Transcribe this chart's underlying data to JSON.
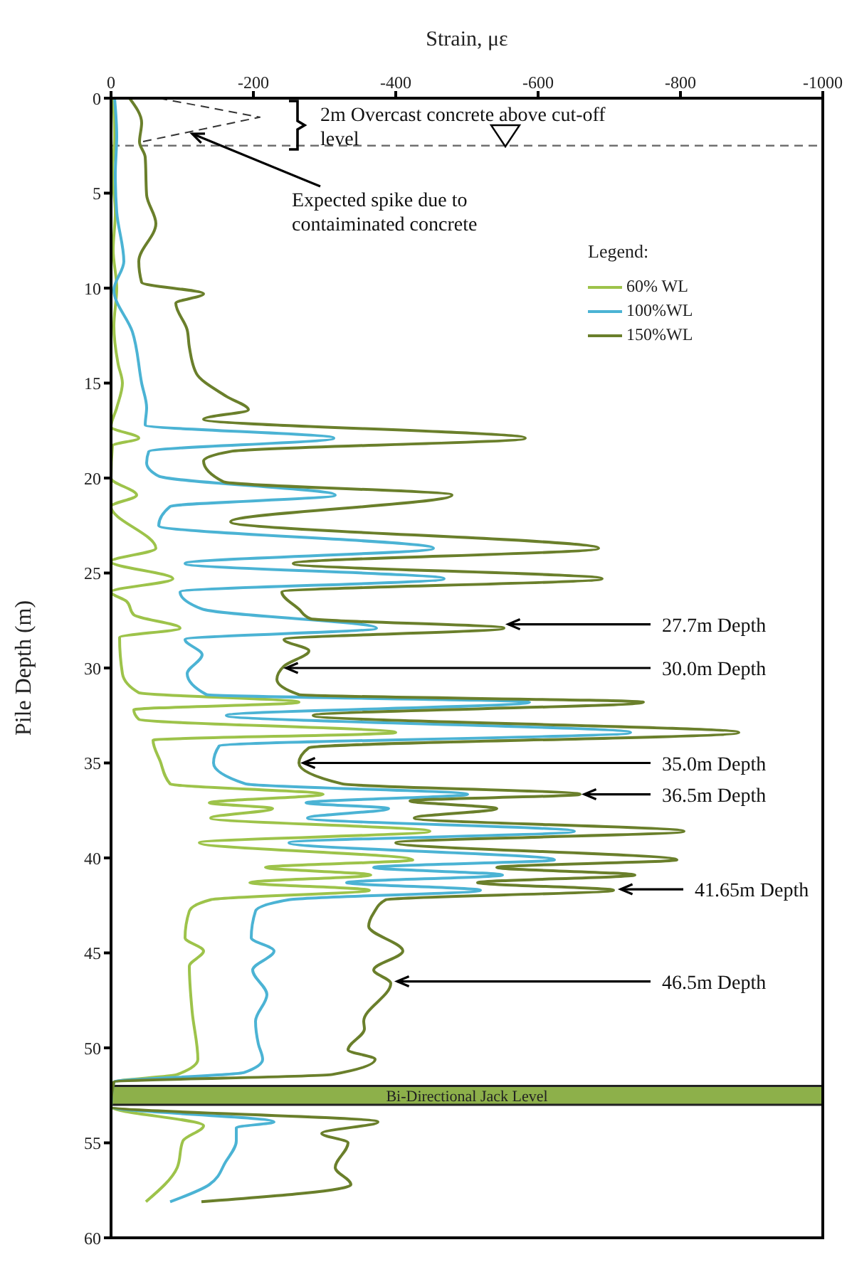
{
  "chart_data": {
    "type": "line",
    "xlabel": "Strain, με",
    "ylabel": "Pile Depth (m)",
    "legend_title": "Legend:",
    "legend": "top right",
    "marker": "none",
    "line_style": "solid",
    "grid": false,
    "xlim": [
      0,
      -1000
    ],
    "xticks": [
      0,
      -200,
      -400,
      -600,
      -800,
      -1000
    ],
    "ylim": [
      60,
      0
    ],
    "yticks": [
      0,
      5,
      10,
      15,
      20,
      25,
      30,
      35,
      40,
      45,
      50,
      55,
      60
    ],
    "series": [
      {
        "name": "60% WL",
        "color": "#9dc34a",
        "x": [
          -3,
          -5,
          -2,
          -6,
          -3,
          -8,
          -4,
          -10,
          -16,
          -8,
          0,
          -39,
          -2,
          0,
          -36,
          0,
          -63,
          0,
          -87,
          0,
          -22,
          -32,
          -97,
          -12,
          -16,
          -39,
          -264,
          -32,
          -39,
          -400,
          -59,
          -69,
          -83,
          -298,
          -138,
          -227,
          -140,
          -448,
          -124,
          -424,
          -217,
          -365,
          -195,
          -363,
          -140,
          -110,
          -104,
          -130,
          -110,
          -114,
          -122,
          -93,
          -4,
          0,
          -130,
          -101,
          -93,
          -49
        ],
        "values": [
          0,
          2,
          4,
          6,
          8,
          10,
          12,
          14,
          15,
          16.3,
          17.3,
          17.9,
          18.3,
          20,
          20.9,
          21.5,
          23.7,
          24.4,
          25.3,
          26,
          26.5,
          27.2,
          27.9,
          28.4,
          30.3,
          31.3,
          31.8,
          32.2,
          32.7,
          33.4,
          33.8,
          34.9,
          36.1,
          36.65,
          37.1,
          37.4,
          37.9,
          38.6,
          39.2,
          40.1,
          40.5,
          40.9,
          41.3,
          41.7,
          42.2,
          42.8,
          44.2,
          44.9,
          45.7,
          48.1,
          50.6,
          51.4,
          51.8,
          53.1,
          54.1,
          54.9,
          56.3,
          58.1
        ]
      },
      {
        "name": "100%WL",
        "color": "#4bb3d4",
        "x": [
          -5,
          -8,
          -6,
          -8,
          -18,
          -4,
          -30,
          -43,
          -50,
          -48,
          -313,
          -53,
          -50,
          -67,
          -315,
          -83,
          -67,
          -453,
          -104,
          -468,
          -97,
          -128,
          -373,
          -104,
          -128,
          -107,
          -134,
          -588,
          -162,
          -730,
          -152,
          -144,
          -189,
          -501,
          -274,
          -390,
          -276,
          -651,
          -250,
          -623,
          -369,
          -550,
          -331,
          -519,
          -250,
          -203,
          -197,
          -229,
          -199,
          -219,
          -203,
          -207,
          -213,
          -187,
          -4,
          0,
          -229,
          -176,
          -176,
          -161,
          -138,
          -83
        ],
        "values": [
          0,
          2,
          4,
          6,
          8.6,
          10.1,
          12.3,
          15,
          16.3,
          17.2,
          17.9,
          18.6,
          19.2,
          19.9,
          20.9,
          21.5,
          22.5,
          23.7,
          24.5,
          25.3,
          26,
          26.9,
          27.9,
          28.5,
          29.3,
          30.3,
          31.4,
          31.8,
          32.5,
          33.4,
          34.1,
          35,
          36.1,
          36.65,
          37.1,
          37.4,
          37.9,
          38.6,
          39.2,
          40.1,
          40.5,
          40.9,
          41.3,
          41.7,
          42.2,
          42.8,
          44.2,
          44.9,
          45.9,
          47.2,
          48.6,
          49.8,
          50.6,
          51.3,
          51.8,
          53.1,
          53.9,
          54.2,
          54.9,
          56,
          57.2,
          58.1
        ]
      },
      {
        "name": "150%WL",
        "color": "#6a7f2b",
        "x": [
          -26,
          -43,
          -40,
          -48,
          -50,
          -63,
          -39,
          -43,
          -130,
          -91,
          -107,
          -110,
          -120,
          -162,
          -193,
          -130,
          -582,
          -168,
          -130,
          -158,
          -479,
          -168,
          -685,
          -256,
          -690,
          -240,
          -264,
          -280,
          -552,
          -243,
          -278,
          -243,
          -233,
          -264,
          -748,
          -284,
          -882,
          -278,
          -264,
          -325,
          -659,
          -420,
          -542,
          -426,
          -805,
          -400,
          -795,
          -542,
          -736,
          -515,
          -706,
          -386,
          -369,
          -362,
          -410,
          -369,
          -393,
          -355,
          -356,
          -333,
          -371,
          -311,
          -4,
          0,
          -375,
          -296,
          -333,
          -315,
          -337,
          -127
        ],
        "values": [
          0,
          1.3,
          2.3,
          3.1,
          5.1,
          6.6,
          8.6,
          9.7,
          10.3,
          10.8,
          12.2,
          13.1,
          14.5,
          15.7,
          16.4,
          16.9,
          17.9,
          18.6,
          19.1,
          20.2,
          20.9,
          22.3,
          23.7,
          24.5,
          25.3,
          26,
          26.9,
          27.4,
          27.9,
          28.5,
          29.1,
          29.9,
          30.6,
          31.4,
          31.8,
          32.5,
          33.4,
          34.2,
          35,
          36.1,
          36.65,
          37,
          37.4,
          37.9,
          38.6,
          39.2,
          40.1,
          40.5,
          40.9,
          41.3,
          41.7,
          42.2,
          42.9,
          43.6,
          44.9,
          45.9,
          46.6,
          48.6,
          49,
          50.1,
          50.6,
          51.4,
          51.8,
          53.1,
          53.9,
          54.5,
          55,
          56.3,
          57.2,
          58.1
        ]
      },
      {
        "type": "line",
        "line_style": "dashed",
        "color": "#333333",
        "x": [
          -67,
          -209,
          -43
        ],
        "values": [
          0,
          1,
          2.3
        ]
      }
    ],
    "ref_lines": [
      {
        "axis": "y",
        "value": 2.5,
        "line_style": "dashed",
        "color": "#707070"
      }
    ],
    "bands": [
      {
        "axis": "y",
        "from": 52,
        "to": 53,
        "label": "Bi-Directional Jack Level",
        "color": "#8db04a"
      }
    ],
    "annotations": [
      "2m Overcast concrete above cut-off level",
      {
        "text": "Expected spike due to contaiminated concrete",
        "x": -110,
        "y": 1.8
      },
      {
        "text": "27.7m Depth",
        "x": -552,
        "y": 27.7
      },
      {
        "text": "30.0m Depth",
        "x": -240,
        "y": 30.0
      },
      {
        "text": "35.0m Depth",
        "x": -264,
        "y": 35.0
      },
      {
        "text": "36.5m Depth",
        "x": -659,
        "y": 36.65
      },
      {
        "text": "41.65m Depth",
        "x": -710,
        "y": 41.65
      },
      {
        "text": "46.5m Depth",
        "x": -396,
        "y": 46.5
      }
    ]
  }
}
